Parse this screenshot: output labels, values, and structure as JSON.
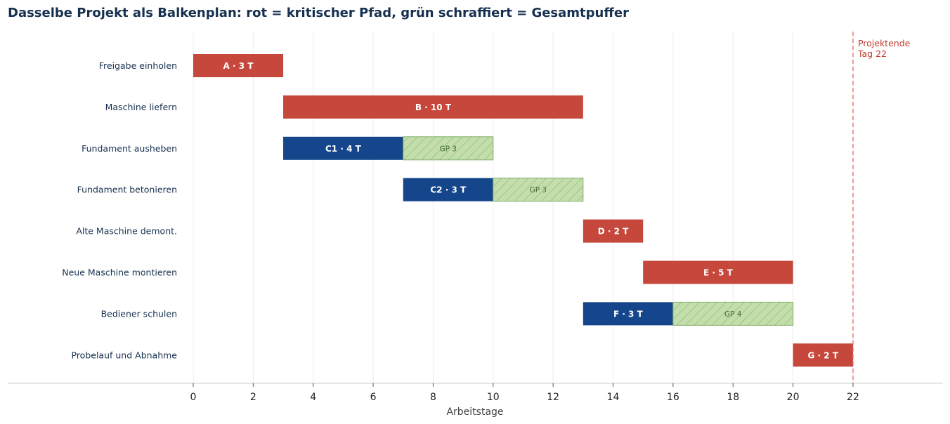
{
  "title": "Dasselbe Projekt als Balkenplan: rot = kritischer Pfad, grün schraffiert = Gesamtpuffer",
  "colors": {
    "critical": "#c6473b",
    "noncritical": "#15468c",
    "float_fill": "#c3deaa",
    "float_stroke": "#7fae6b",
    "deadline": "#e06a62",
    "deadline_text": "#c0392b",
    "category_text": "#16304f"
  },
  "chart_data": {
    "type": "gantt",
    "xlabel": "Arbeitstage",
    "xlim": [
      0,
      22
    ],
    "xticks": [
      0,
      2,
      4,
      6,
      8,
      10,
      12,
      14,
      16,
      18,
      20,
      22
    ],
    "grid": true,
    "tasks": [
      {
        "name": "Freigabe einholen",
        "label": "A · 3 T",
        "start": 0,
        "duration": 3,
        "critical": true,
        "float": 0,
        "float_label": ""
      },
      {
        "name": "Maschine liefern",
        "label": "B · 10 T",
        "start": 3,
        "duration": 10,
        "critical": true,
        "float": 0,
        "float_label": ""
      },
      {
        "name": "Fundament ausheben",
        "label": "C1 · 4 T",
        "start": 3,
        "duration": 4,
        "critical": false,
        "float": 3,
        "float_label": "GP 3"
      },
      {
        "name": "Fundament betonieren",
        "label": "C2 · 3 T",
        "start": 7,
        "duration": 3,
        "critical": false,
        "float": 3,
        "float_label": "GP 3"
      },
      {
        "name": "Alte Maschine demont.",
        "label": "D · 2 T",
        "start": 13,
        "duration": 2,
        "critical": true,
        "float": 0,
        "float_label": ""
      },
      {
        "name": "Neue Maschine montieren",
        "label": "E · 5 T",
        "start": 15,
        "duration": 5,
        "critical": true,
        "float": 0,
        "float_label": ""
      },
      {
        "name": "Bediener schulen",
        "label": "F · 3 T",
        "start": 13,
        "duration": 3,
        "critical": false,
        "float": 4,
        "float_label": "GP 4"
      },
      {
        "name": "Probelauf und Abnahme",
        "label": "G · 2 T",
        "start": 20,
        "duration": 2,
        "critical": true,
        "float": 0,
        "float_label": ""
      }
    ],
    "deadline": {
      "value": 22,
      "label_line1": "Projektende",
      "label_line2": "Tag 22"
    }
  }
}
